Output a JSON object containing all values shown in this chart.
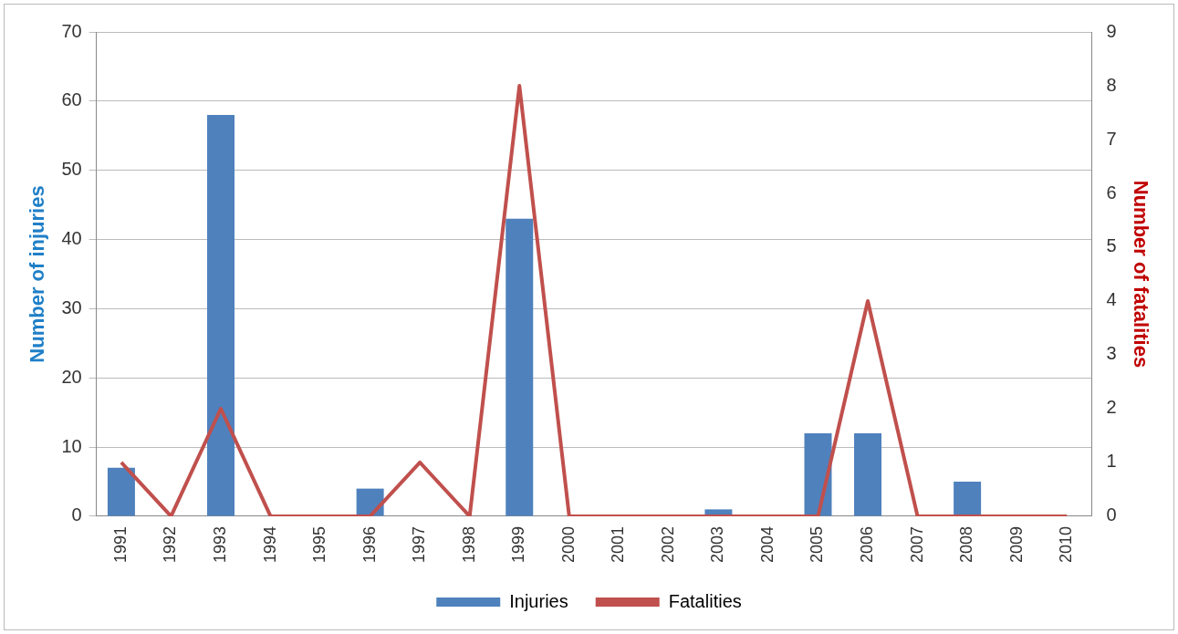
{
  "chart_data": {
    "type": "bar",
    "ylabel": "Number of injuries",
    "y2label": "Number of fatalities",
    "categories": [
      "1991",
      "1992",
      "1993",
      "1994",
      "1995",
      "1996",
      "1997",
      "1998",
      "1999",
      "2000",
      "2001",
      "2002",
      "2003",
      "2004",
      "2005",
      "2006",
      "2007",
      "2008",
      "2009",
      "2010"
    ],
    "series": [
      {
        "name": "Injuries",
        "color": "#4f81bd",
        "values": [
          7,
          0,
          58,
          0,
          0,
          4,
          0,
          0,
          43,
          0,
          0,
          0,
          1,
          0,
          12,
          12,
          0,
          5,
          0,
          0
        ]
      },
      {
        "name": "Fatalities",
        "type": "line",
        "axis": "y2",
        "color": "#c0504d",
        "values": [
          1,
          0,
          2,
          0,
          0,
          0,
          1,
          0,
          8,
          0,
          0,
          0,
          0,
          0,
          0,
          4,
          0,
          0,
          0,
          0
        ]
      }
    ],
    "ylim": [
      0,
      70
    ],
    "yticks": [
      0,
      10,
      20,
      30,
      40,
      50,
      60,
      70
    ],
    "y2lim": [
      0,
      9
    ],
    "y2ticks": [
      0,
      1,
      2,
      3,
      4,
      5,
      6,
      7,
      8,
      9
    ],
    "grid": "y",
    "legend": "bottom",
    "marker": "none",
    "line_style": "solid"
  }
}
